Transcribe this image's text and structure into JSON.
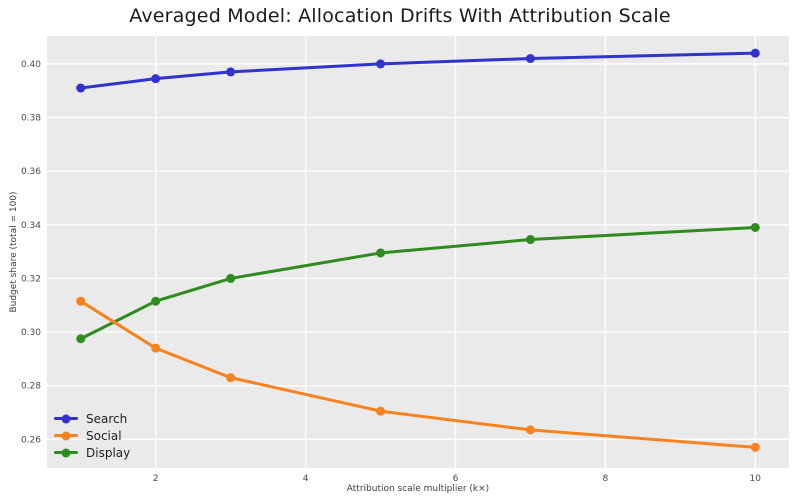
{
  "chart_data": {
    "type": "line",
    "title": "Averaged Model: Allocation Drifts With Attribution Scale",
    "xlabel": "Attribution scale multiplier (k×)",
    "ylabel": "Budget share (total = 100)",
    "x": [
      1,
      2,
      3,
      5,
      7,
      10
    ],
    "series": [
      {
        "name": "Search",
        "color": "#3232cd",
        "values": [
          0.391,
          0.3945,
          0.397,
          0.4,
          0.402,
          0.404
        ]
      },
      {
        "name": "Social",
        "color": "#f8821e",
        "values": [
          0.3115,
          0.294,
          0.283,
          0.2705,
          0.2635,
          0.257
        ]
      },
      {
        "name": "Display",
        "color": "#2e8b1d",
        "values": [
          0.2975,
          0.3115,
          0.32,
          0.3295,
          0.3345,
          0.339
        ]
      }
    ],
    "axes": {
      "xlim": [
        0.55,
        10.45
      ],
      "ylim": [
        0.2493,
        0.4104
      ],
      "x_ticks": [
        2,
        4,
        6,
        8,
        10
      ],
      "y_ticks": [
        0.26,
        0.28,
        0.3,
        0.32,
        0.34,
        0.36,
        0.38,
        0.4
      ]
    },
    "style": {
      "plot_bg": "#eaeaea",
      "grid_color": "#ffffff",
      "tick_color": "#4a4a4a",
      "line_width": 3,
      "marker_radius": 4.5
    },
    "legend": {
      "position": "lower left",
      "entries": [
        "Search",
        "Social",
        "Display"
      ]
    },
    "grid": true
  }
}
